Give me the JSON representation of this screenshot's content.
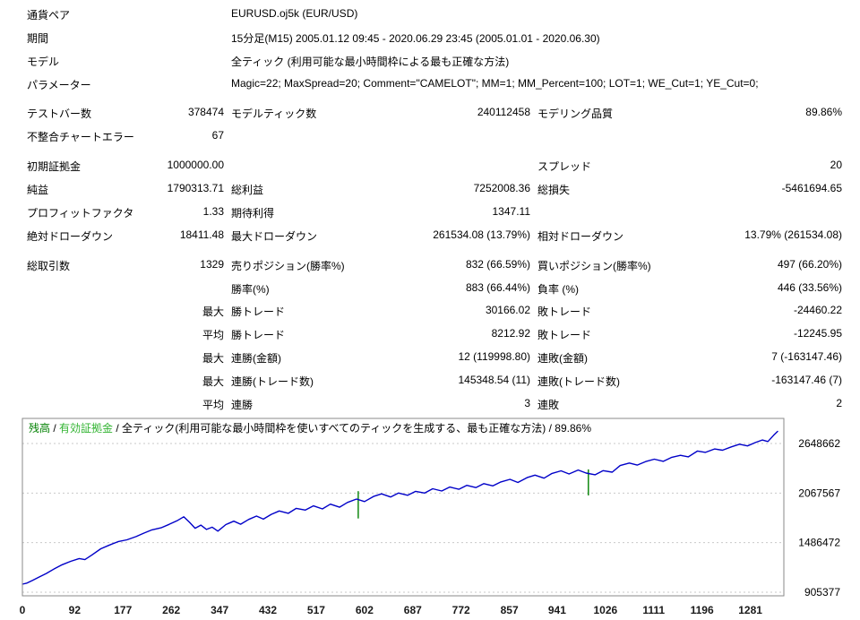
{
  "info_rows": [
    {
      "label": "通貨ペア",
      "value": "EURUSD.oj5k (EUR/USD)"
    },
    {
      "label": "期間",
      "value": "15分足(M15) 2005.01.12 09:45 - 2020.06.29 23:45 (2005.01.01 - 2020.06.30)"
    },
    {
      "label": "モデル",
      "value": "全ティック (利用可能な最小時間枠による最も正確な方法)"
    },
    {
      "label": "パラメーター",
      "value": "Magic=22; MaxSpread=20; Comment=\"CAMELOT\"; MM=1; MM_Percent=100; LOT=1; WE_Cut=1; YE_Cut=0;"
    }
  ],
  "stats_rows": [
    {
      "c1": "テストバー数",
      "c2": "378474",
      "c3": "モデルティック数",
      "c4": "240112458",
      "c5": "モデリング品質",
      "c6": "89.86%"
    },
    {
      "c1": "不整合チャートエラー",
      "c2": "67",
      "c3": "",
      "c4": "",
      "c5": "",
      "c6": ""
    },
    {
      "c1": "初期証拠金",
      "c2": "1000000.00",
      "c3": "",
      "c4": "",
      "c5": "スプレッド",
      "c6": "20"
    },
    {
      "c1": "純益",
      "c2": "1790313.71",
      "c3": "総利益",
      "c4": "7252008.36",
      "c5": "総損失",
      "c6": "-5461694.65"
    },
    {
      "c1": "プロフィットファクタ",
      "c2": "1.33",
      "c3": "期待利得",
      "c4": "1347.11",
      "c5": "",
      "c6": ""
    },
    {
      "c1": "絶対ドローダウン",
      "c2": "18411.48",
      "c3": "最大ドローダウン",
      "c4": "261534.08 (13.79%)",
      "c5": "相対ドローダウン",
      "c6": "13.79% (261534.08)"
    },
    {
      "c1": "総取引数",
      "c2": "1329",
      "c3": "売りポジション(勝率%)",
      "c4": "832 (66.59%)",
      "c5": "買いポジション(勝率%)",
      "c6": "497 (66.20%)"
    },
    {
      "c1": "",
      "c2": "",
      "c3": "勝率(%)",
      "c4": "883 (66.44%)",
      "c5": "負率 (%)",
      "c6": "446 (33.56%)"
    },
    {
      "c1": "",
      "c2": "最大",
      "c3": "勝トレード",
      "c4": "30166.02",
      "c5": "敗トレード",
      "c6": "-24460.22"
    },
    {
      "c1": "",
      "c2": "平均",
      "c3": "勝トレード",
      "c4": "8212.92",
      "c5": "敗トレード",
      "c6": "-12245.95"
    },
    {
      "c1": "",
      "c2": "最大",
      "c3": "連勝(金額)",
      "c4": "12 (119998.80)",
      "c5": "連敗(金額)",
      "c6": "7 (-163147.46)"
    },
    {
      "c1": "",
      "c2": "最大",
      "c3": "連勝(トレード数)",
      "c4": "145348.54 (11)",
      "c5": "連敗(トレード数)",
      "c6": "-163147.46 (7)"
    },
    {
      "c1": "",
      "c2": "平均",
      "c3": "連勝",
      "c4": "3",
      "c5": "連敗",
      "c6": "2"
    }
  ],
  "chart_data": {
    "type": "line",
    "title": "残高 / 有効証拠金 / 全ティック(利用可能な最小時間枠を使いすべてのティックを生成する、最も正確な方法) / 89.86%",
    "title_parts": {
      "balance": "残高",
      "sep": " / ",
      "equity": "有効証拠金",
      "rest": " / 全ティック(利用可能な最小時間枠を使いすべてのティックを生成する、最も正確な方法) / 89.86%"
    },
    "xlabel": "",
    "ylabel": "",
    "ylim": [
      863373,
      2942571
    ],
    "xmax": 1340,
    "yticks": [
      2648662,
      2067567,
      1486472,
      905377
    ],
    "xticks": [
      0,
      92,
      177,
      262,
      347,
      432,
      517,
      602,
      687,
      772,
      857,
      941,
      1026,
      1111,
      1196,
      1281
    ],
    "grid": true,
    "colors": {
      "balance_line": "#0000c8",
      "equity_mark": "#008000",
      "balance_label": "#008000",
      "equity_label": "#32b432"
    },
    "equity_marks": [
      {
        "t": 591,
        "from": 1770000,
        "to": 2090000
      },
      {
        "t": 996,
        "from": 2040000,
        "to": 2345000
      }
    ],
    "balance": [
      [
        0,
        1000000
      ],
      [
        8,
        1012000
      ],
      [
        18,
        1045000
      ],
      [
        30,
        1085000
      ],
      [
        42,
        1125000
      ],
      [
        55,
        1175000
      ],
      [
        70,
        1228000
      ],
      [
        85,
        1268000
      ],
      [
        100,
        1300000
      ],
      [
        110,
        1288000
      ],
      [
        122,
        1340000
      ],
      [
        138,
        1415000
      ],
      [
        152,
        1455000
      ],
      [
        168,
        1498000
      ],
      [
        184,
        1520000
      ],
      [
        200,
        1558000
      ],
      [
        214,
        1598000
      ],
      [
        228,
        1636000
      ],
      [
        244,
        1660000
      ],
      [
        258,
        1700000
      ],
      [
        272,
        1742000
      ],
      [
        284,
        1790000
      ],
      [
        294,
        1725000
      ],
      [
        304,
        1655000
      ],
      [
        314,
        1692000
      ],
      [
        324,
        1642000
      ],
      [
        334,
        1668000
      ],
      [
        344,
        1622000
      ],
      [
        358,
        1698000
      ],
      [
        372,
        1738000
      ],
      [
        384,
        1702000
      ],
      [
        398,
        1758000
      ],
      [
        412,
        1798000
      ],
      [
        424,
        1762000
      ],
      [
        438,
        1818000
      ],
      [
        452,
        1858000
      ],
      [
        468,
        1830000
      ],
      [
        482,
        1888000
      ],
      [
        498,
        1868000
      ],
      [
        512,
        1918000
      ],
      [
        528,
        1882000
      ],
      [
        542,
        1938000
      ],
      [
        558,
        1902000
      ],
      [
        572,
        1958000
      ],
      [
        588,
        1998000
      ],
      [
        602,
        1968000
      ],
      [
        618,
        2028000
      ],
      [
        632,
        2058000
      ],
      [
        648,
        2022000
      ],
      [
        662,
        2068000
      ],
      [
        678,
        2042000
      ],
      [
        692,
        2088000
      ],
      [
        708,
        2068000
      ],
      [
        722,
        2118000
      ],
      [
        738,
        2092000
      ],
      [
        752,
        2138000
      ],
      [
        768,
        2112000
      ],
      [
        782,
        2158000
      ],
      [
        798,
        2132000
      ],
      [
        812,
        2178000
      ],
      [
        828,
        2152000
      ],
      [
        842,
        2198000
      ],
      [
        858,
        2228000
      ],
      [
        872,
        2192000
      ],
      [
        888,
        2248000
      ],
      [
        902,
        2278000
      ],
      [
        918,
        2242000
      ],
      [
        932,
        2298000
      ],
      [
        948,
        2328000
      ],
      [
        962,
        2292000
      ],
      [
        978,
        2338000
      ],
      [
        992,
        2302000
      ],
      [
        1008,
        2282000
      ],
      [
        1022,
        2330000
      ],
      [
        1038,
        2312000
      ],
      [
        1052,
        2390000
      ],
      [
        1068,
        2420000
      ],
      [
        1082,
        2395000
      ],
      [
        1098,
        2440000
      ],
      [
        1112,
        2465000
      ],
      [
        1128,
        2440000
      ],
      [
        1142,
        2485000
      ],
      [
        1158,
        2510000
      ],
      [
        1172,
        2492000
      ],
      [
        1188,
        2560000
      ],
      [
        1202,
        2545000
      ],
      [
        1218,
        2585000
      ],
      [
        1232,
        2570000
      ],
      [
        1248,
        2610000
      ],
      [
        1262,
        2640000
      ],
      [
        1276,
        2620000
      ],
      [
        1290,
        2660000
      ],
      [
        1302,
        2690000
      ],
      [
        1312,
        2672000
      ],
      [
        1322,
        2745000
      ],
      [
        1329,
        2790314
      ]
    ]
  }
}
